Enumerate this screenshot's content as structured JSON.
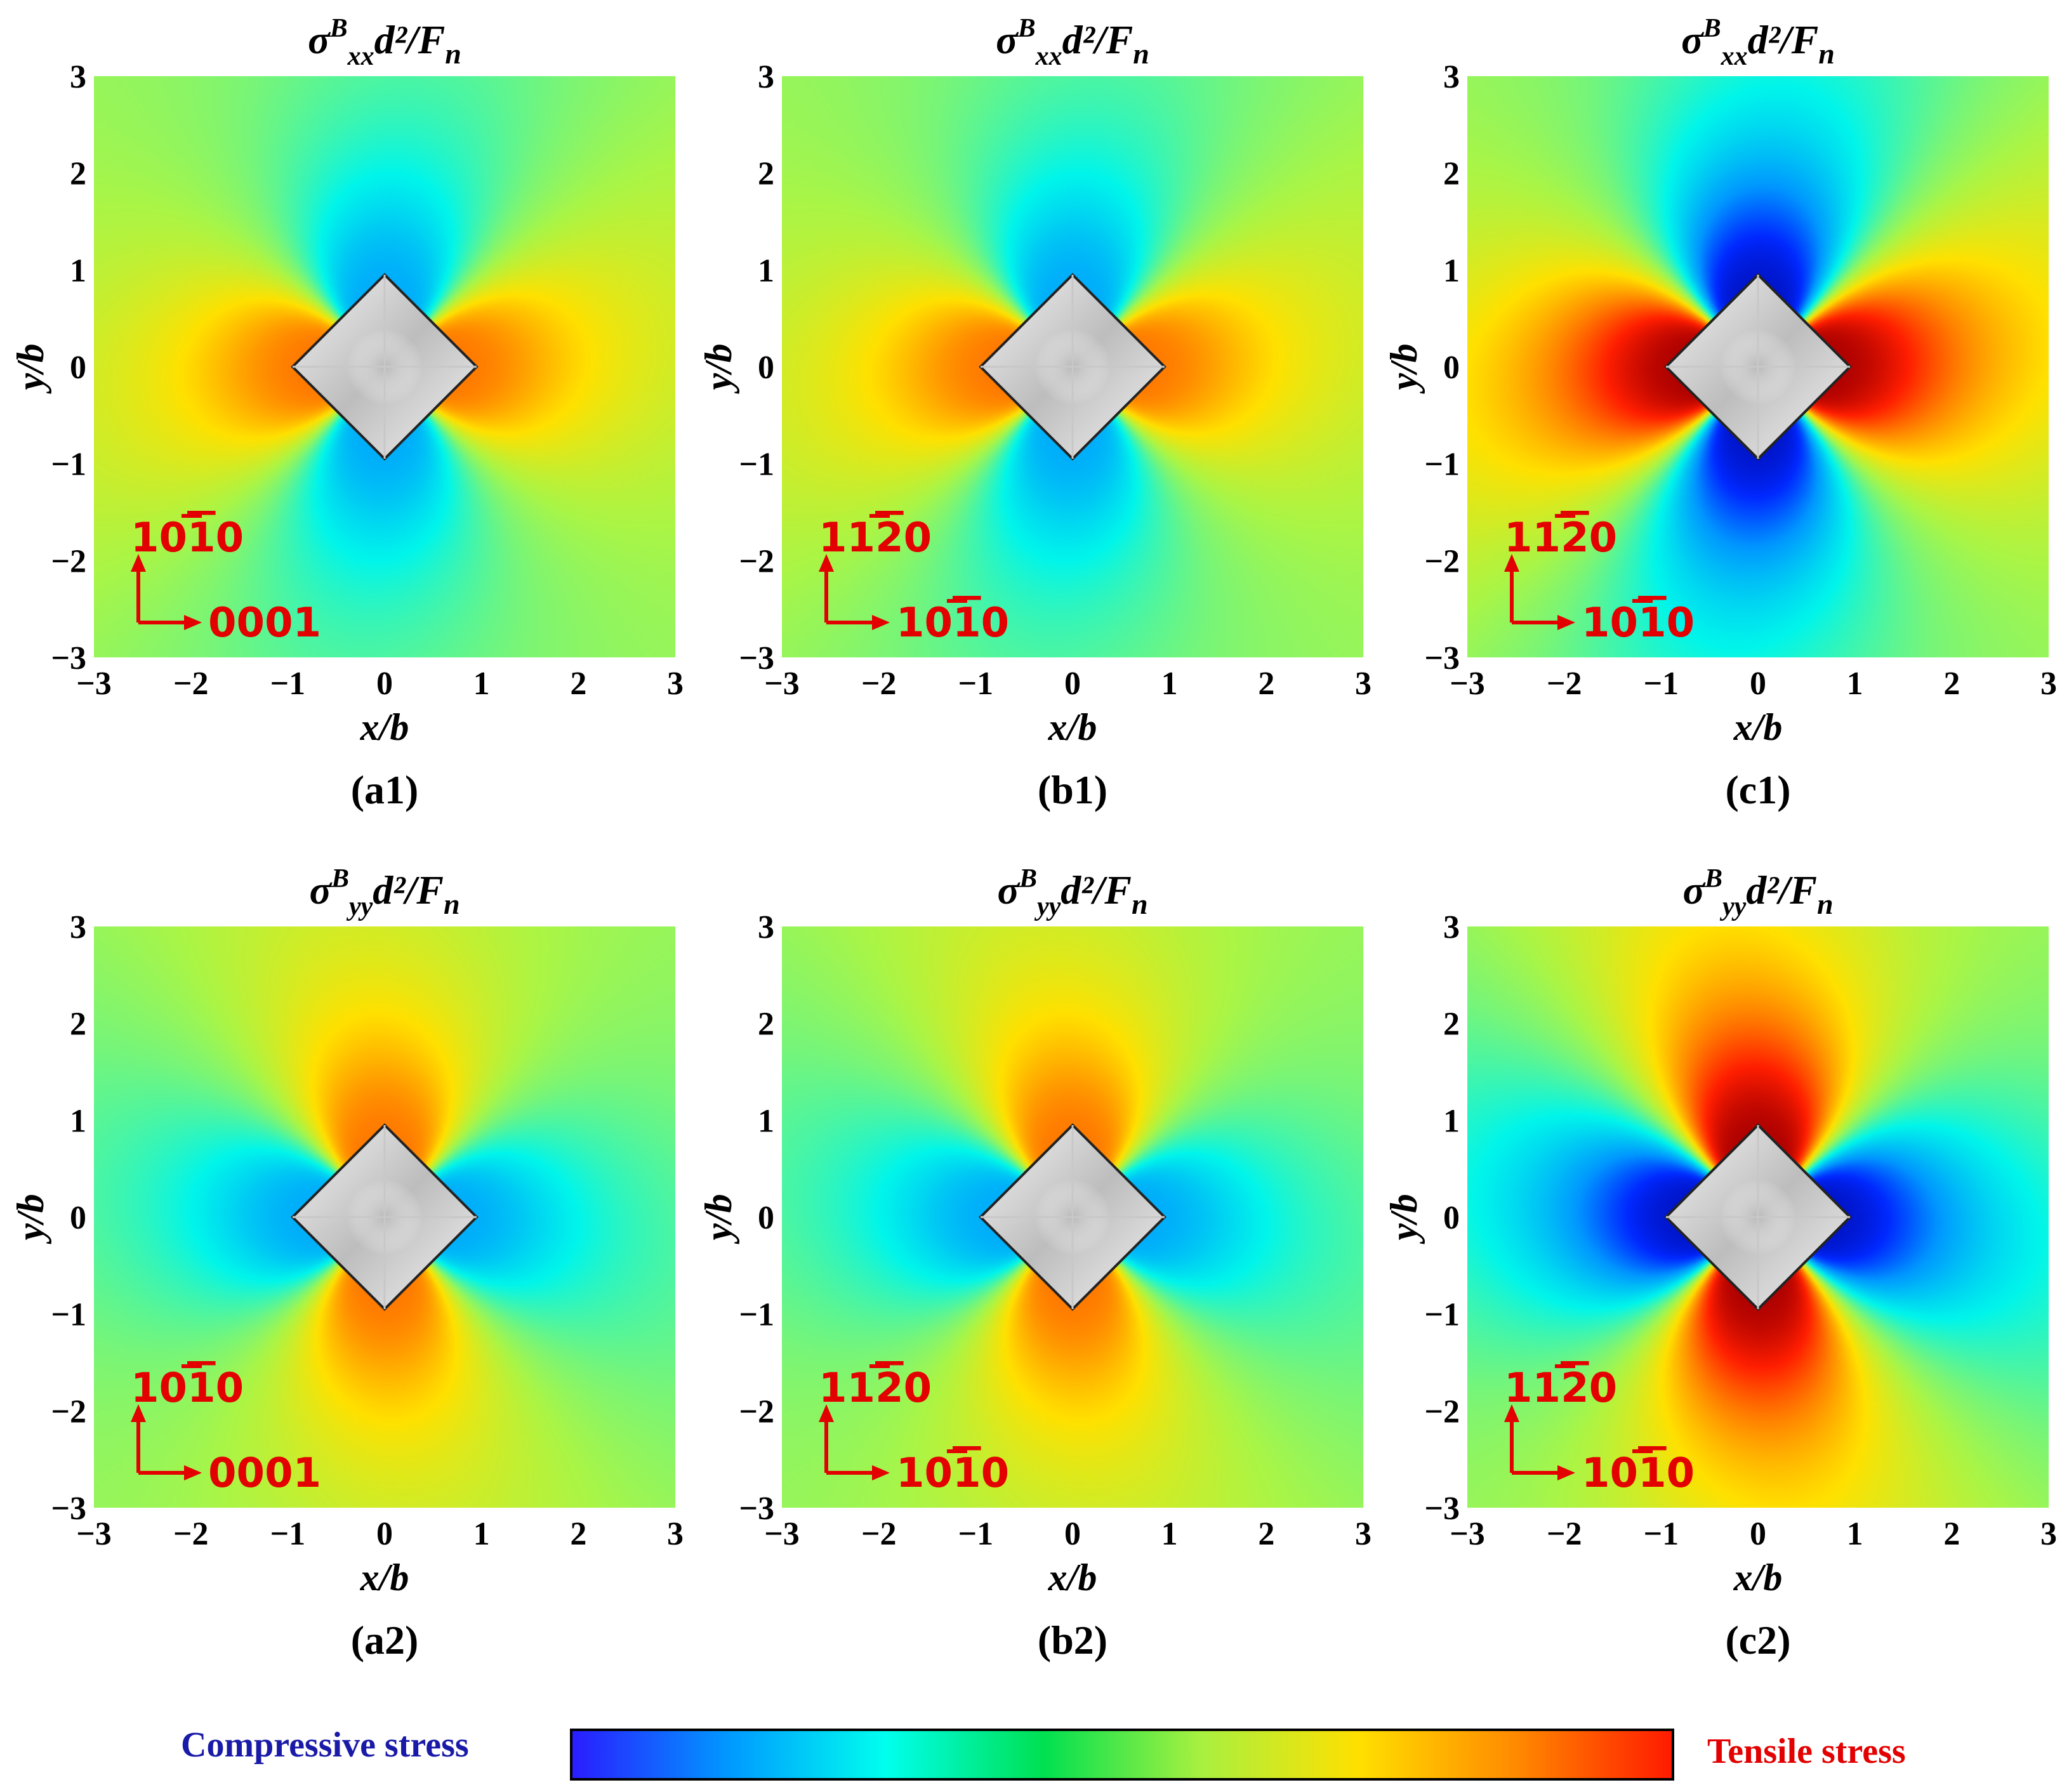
{
  "chart_data": {
    "type": "heatmap",
    "description_units": "normalized stress fields around a square indent",
    "x_range": [
      -3,
      3
    ],
    "y_range": [
      -3,
      3
    ],
    "ticks": [
      -3,
      -2,
      -1,
      0,
      1,
      2,
      3
    ],
    "tick_labels": [
      "−3",
      "−2",
      "−1",
      "0",
      "1",
      "2",
      "3"
    ],
    "xlabel": "x/b",
    "ylabel": "y/b",
    "panels": [
      {
        "id": "a1",
        "caption": "(a1)",
        "title_pre": "σ",
        "title_sup": "B",
        "title_sub": "xx",
        "title_post": "d²/F",
        "title_sub2": "n",
        "component": "xx",
        "intensity": 0.55,
        "vertical_dir": "10̅1̅0",
        "horizontal_dir": "0001",
        "v_base": "10",
        "v_bar": "1",
        "v_end": "0",
        "h_base": "0001",
        "h_bar": "",
        "h_end": ""
      },
      {
        "id": "b1",
        "caption": "(b1)",
        "title_pre": "σ",
        "title_sup": "B",
        "title_sub": "xx",
        "title_post": "d²/F",
        "title_sub2": "n",
        "component": "xx",
        "intensity": 0.55,
        "v_base": "11",
        "v_bar": "2",
        "v_end": "0",
        "h_base": "10",
        "h_bar": "1",
        "h_end": "0"
      },
      {
        "id": "c1",
        "caption": "(c1)",
        "title_pre": "σ",
        "title_sup": "B",
        "title_sub": "xx",
        "title_post": "d²/F",
        "title_sub2": "n",
        "component": "xx",
        "intensity": 1.0,
        "v_base": "11",
        "v_bar": "2",
        "v_end": "0",
        "h_base": "10",
        "h_bar": "1",
        "h_end": "0"
      },
      {
        "id": "a2",
        "caption": "(a2)",
        "title_pre": "σ",
        "title_sup": "B",
        "title_sub": "yy",
        "title_post": "d²/F",
        "title_sub2": "n",
        "component": "yy",
        "intensity": 0.55,
        "v_base": "10",
        "v_bar": "1",
        "v_end": "0",
        "h_base": "0001",
        "h_bar": "",
        "h_end": ""
      },
      {
        "id": "b2",
        "caption": "(b2)",
        "title_pre": "σ",
        "title_sup": "B",
        "title_sub": "yy",
        "title_post": "d²/F",
        "title_sub2": "n",
        "component": "yy",
        "intensity": 0.55,
        "v_base": "11",
        "v_bar": "2",
        "v_end": "0",
        "h_base": "10",
        "h_bar": "1",
        "h_end": "0"
      },
      {
        "id": "c2",
        "caption": "(c2)",
        "title_pre": "σ",
        "title_sup": "B",
        "title_sub": "yy",
        "title_post": "d²/F",
        "title_sub2": "n",
        "component": "yy",
        "intensity": 1.0,
        "v_base": "11",
        "v_bar": "2",
        "v_end": "0",
        "h_base": "10",
        "h_bar": "1",
        "h_end": "0"
      }
    ],
    "colorbar": {
      "left_label": "Compressive stress",
      "right_label": "Tensile stress",
      "left_color": "#1a1aa8",
      "right_color": "#e30000",
      "stops": [
        "#2a1cff",
        "#0099ff",
        "#00ffee",
        "#00e050",
        "#a8f040",
        "#ffe000",
        "#ff8a00",
        "#ff1a00"
      ]
    }
  }
}
